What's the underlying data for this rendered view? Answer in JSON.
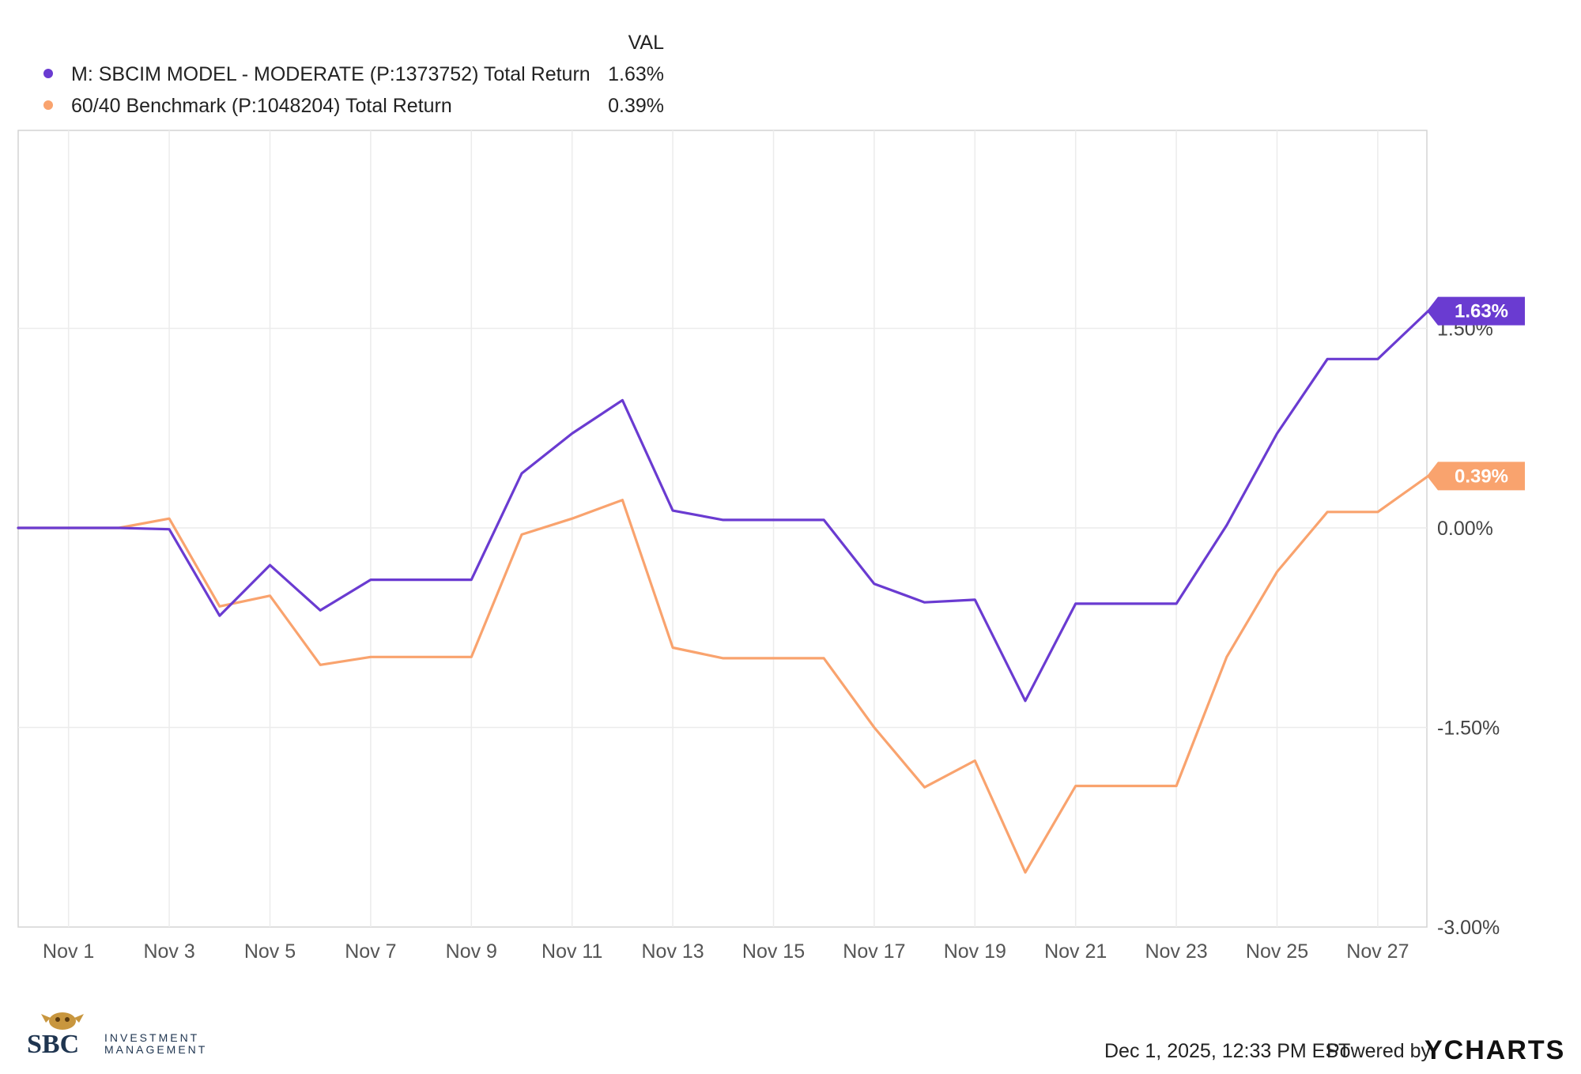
{
  "legend": {
    "val_header": "VAL",
    "entries": [
      {
        "label": "M: SBCIM MODEL - MODERATE (P:1373752) Total Return",
        "value": "1.63%"
      },
      {
        "label": "60/40 Benchmark (P:1048204) Total Return",
        "value": "0.39%"
      }
    ]
  },
  "footer": {
    "timestamp": "Dec 1, 2025, 12:33 PM EST",
    "powered_by": "Powered by",
    "brand": "YCHARTS"
  },
  "logo": {
    "big": "SBC",
    "line1": "INVESTMENT",
    "line2": "MANAGEMENT"
  },
  "chart_data": {
    "type": "line",
    "x": [
      "Oct 31",
      "Nov 1",
      "Nov 2",
      "Nov 3",
      "Nov 4",
      "Nov 5",
      "Nov 6",
      "Nov 7",
      "Nov 8",
      "Nov 9",
      "Nov 10",
      "Nov 11",
      "Nov 12",
      "Nov 13",
      "Nov 14",
      "Nov 15",
      "Nov 16",
      "Nov 17",
      "Nov 18",
      "Nov 19",
      "Nov 20",
      "Nov 21",
      "Nov 22",
      "Nov 23",
      "Nov 24",
      "Nov 25",
      "Nov 26",
      "Nov 27",
      "Nov 28"
    ],
    "x_tick_labels": [
      "Nov 1",
      "Nov 3",
      "Nov 5",
      "Nov 7",
      "Nov 9",
      "Nov 11",
      "Nov 13",
      "Nov 15",
      "Nov 17",
      "Nov 19",
      "Nov 21",
      "Nov 23",
      "Nov 25",
      "Nov 27"
    ],
    "y_tick_labels": [
      "1.50%",
      "0.00%",
      "-1.50%",
      "-3.00%"
    ],
    "ylim": [
      -3.0,
      3.0
    ],
    "series": [
      {
        "name": "M: SBCIM MODEL - MODERATE (P:1373752) Total Return",
        "color": "#6a3bd1",
        "end_label": "1.63%",
        "values": [
          0.0,
          0.0,
          0.0,
          -0.01,
          -0.66,
          -0.28,
          -0.62,
          -0.39,
          -0.39,
          -0.39,
          0.41,
          0.71,
          0.96,
          0.13,
          0.06,
          0.06,
          0.06,
          -0.42,
          -0.56,
          -0.54,
          -1.3,
          -0.57,
          -0.57,
          -0.57,
          0.02,
          0.71,
          1.27,
          1.27,
          1.63
        ]
      },
      {
        "name": "60/40 Benchmark (P:1048204) Total Return",
        "color": "#f9a36e",
        "end_label": "0.39%",
        "values": [
          0.0,
          0.0,
          0.0,
          0.07,
          -0.59,
          -0.51,
          -1.03,
          -0.97,
          -0.97,
          -0.97,
          -0.05,
          0.07,
          0.21,
          -0.9,
          -0.98,
          -0.98,
          -0.98,
          -1.5,
          -1.95,
          -1.75,
          -2.59,
          -1.94,
          -1.94,
          -1.94,
          -0.97,
          -0.33,
          0.12,
          0.12,
          0.39
        ]
      }
    ],
    "grid": true,
    "legend_position": "top-left"
  }
}
